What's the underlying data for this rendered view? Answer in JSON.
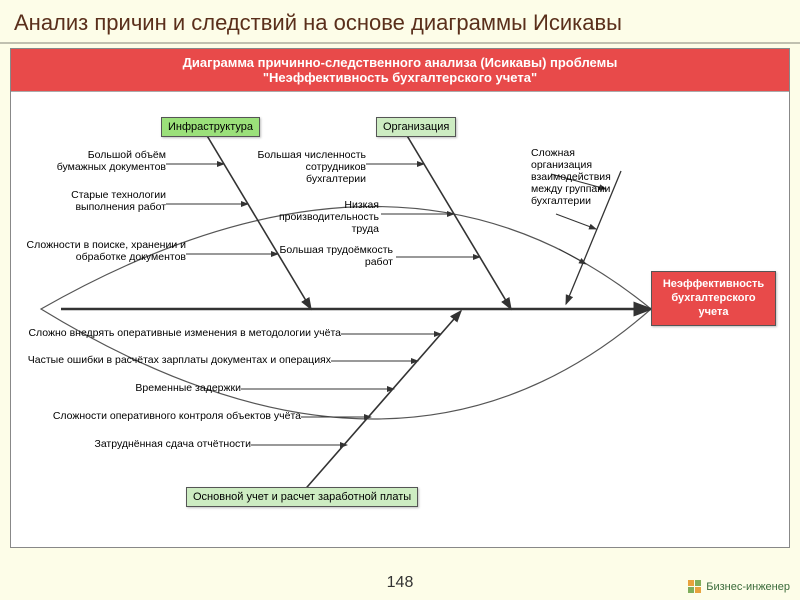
{
  "page_title": "Анализ причин и следствий на основе диаграммы Исикавы",
  "header": {
    "line1": "Диаграмма причинно-следственного анализа (Исикавы) проблемы",
    "line2": "\"Неэффективность бухгалтерского учета\""
  },
  "categories": {
    "infra": {
      "label": "Инфраструктура",
      "bg": "#9be07a"
    },
    "org": {
      "label": "Организация",
      "bg": "#cdecc2"
    },
    "payroll": {
      "label": "Основной учет и расчет заработной платы",
      "bg": "#cdecc2"
    }
  },
  "effect": {
    "line1": "Неэффективность",
    "line2": "бухгалтерского",
    "line3": "учета",
    "bg": "#e84a4a"
  },
  "causes": {
    "c1": "Большой объём\nбумажных документов",
    "c2": "Старые технологии\nвыполнения работ",
    "c3": "Сложности в поиске, хранении и\nобработке документов",
    "c4": "Большая численность\nсотрудников бухгалтерии",
    "c5": "Низкая\nпроизводительность труда",
    "c6": "Большая трудоёмкость\nработ",
    "c7": "Сложная\nорганизация\nвзаимодействия\nмежду группами\nбухгалтерии",
    "c8": "Сложно внедрять оперативные изменения в методологии учёта",
    "c9": "Частые ошибки в расчётах зарплаты документах и операциях",
    "c10": "Временные задержки",
    "c11": "Сложности оперативного контроля объектов учёта",
    "c12": "Затруднённая сдача отчётности"
  },
  "page_number": "148",
  "logo_text": "Бизнес-инженер",
  "colors": {
    "page_bg": "#fdfde8",
    "title_color": "#5a2f1b",
    "header_bg": "#e84a4a",
    "arrow": "#333333",
    "fish_outline": "#555555"
  }
}
